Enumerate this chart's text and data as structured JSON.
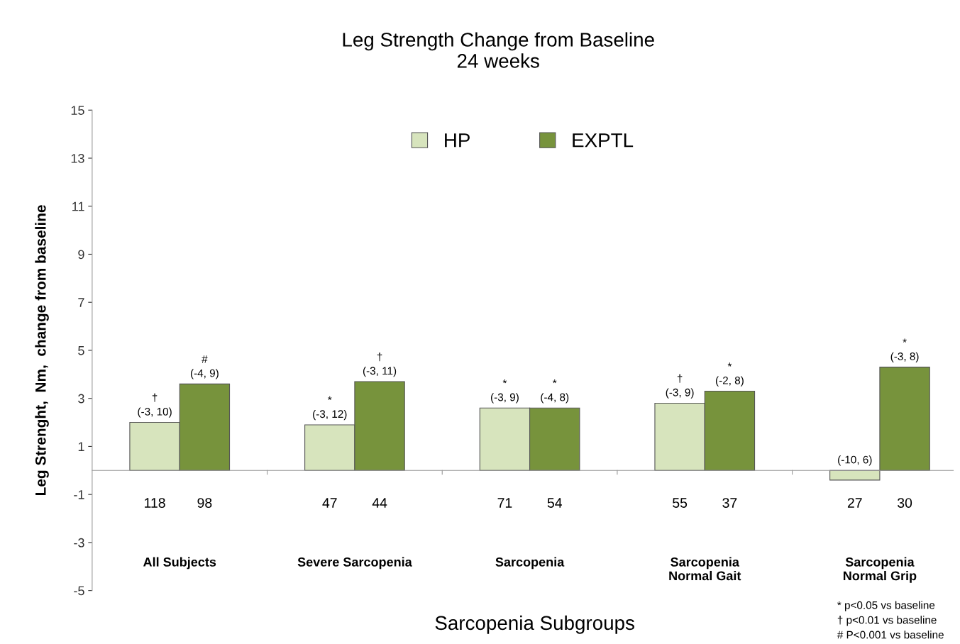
{
  "chart_data": {
    "type": "bar",
    "title": "Leg Strength Change from Baseline\n24 weeks",
    "xlabel": "Sarcopenia Subgroups",
    "ylabel": "Leg Strenght,  Nm,  change from baseline",
    "categories": [
      "All Subjects",
      "Severe Sarcopenia",
      "Sarcopenia",
      "Sarcopenia\nNormal Gait",
      "Sarcopenia\nNormal Grip"
    ],
    "series": [
      {
        "name": "HP",
        "color": "#d7e4bd",
        "values": [
          2.0,
          1.9,
          2.6,
          2.8,
          -0.4
        ],
        "value_labels": [
          "†\n(-3, 10)",
          "*\n(-3, 12)",
          "*\n(-3, 9)",
          "†\n(-3, 9)",
          "(-10, 6)"
        ]
      },
      {
        "name": "EXPTL",
        "color": "#77933c",
        "values": [
          3.6,
          3.7,
          2.6,
          3.3,
          4.3
        ],
        "value_labels": [
          "#\n(-4, 9)",
          "†\n(-3, 11)",
          "*\n(-4, 8)",
          "*\n(-2, 8)",
          "*\n(-3, 8)"
        ]
      }
    ],
    "ylim": [
      -5,
      15
    ],
    "yticks": [
      -5,
      -3,
      -1,
      1,
      3,
      5,
      7,
      9,
      11,
      13,
      15
    ],
    "grid": false,
    "legend": "top",
    "annotations": [
      "118",
      "98",
      "47",
      "44",
      "71",
      "54",
      "55",
      "37",
      "27",
      "30",
      "* p<0.05 vs baseline\n† p<0.01 vs baseline\n# P<0.001 vs baseline"
    ]
  }
}
